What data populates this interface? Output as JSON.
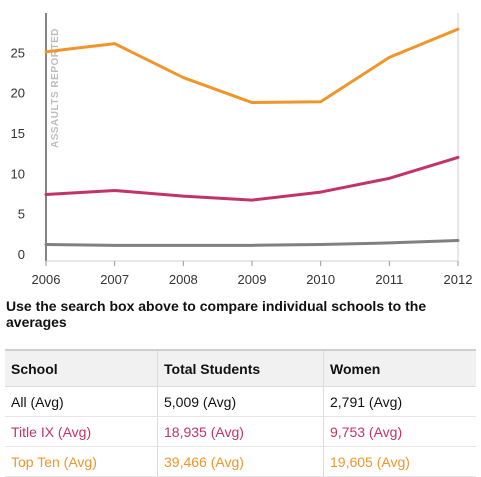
{
  "chart_data": {
    "type": "line",
    "x": [
      2006,
      2007,
      2008,
      2009,
      2010,
      2011,
      2012
    ],
    "xlabel": "",
    "ylabel": "ASSAULTS REPORTED",
    "ylim": [
      0,
      30
    ],
    "yticks": [
      0,
      5,
      10,
      15,
      20,
      25
    ],
    "grid": false,
    "legend": "none",
    "series": [
      {
        "color": "#f0952a",
        "values": [
          25.2,
          26.2,
          22.0,
          18.9,
          19.0,
          24.5,
          28.0
        ]
      },
      {
        "color": "#c2336a",
        "values": [
          7.5,
          8.0,
          7.3,
          6.8,
          7.8,
          9.5,
          12.1
        ]
      },
      {
        "color": "#808080",
        "values": [
          1.3,
          1.2,
          1.2,
          1.2,
          1.3,
          1.5,
          1.8
        ]
      }
    ]
  },
  "caption": "Use the search box above to compare individual schools to the averages",
  "table": {
    "headers": [
      "School",
      "Total Students",
      "Women"
    ],
    "rows": [
      {
        "school": "All (Avg)",
        "total": "5,009 (Avg)",
        "women": "2,791 (Avg)",
        "color": "#111111"
      },
      {
        "school": "Title IX (Avg)",
        "total": "18,935 (Avg)",
        "women": "9,753 (Avg)",
        "color": "#c2336a"
      },
      {
        "school": "Top Ten (Avg)",
        "total": "39,466 (Avg)",
        "women": "19,605 (Avg)",
        "color": "#f0952a"
      }
    ]
  }
}
